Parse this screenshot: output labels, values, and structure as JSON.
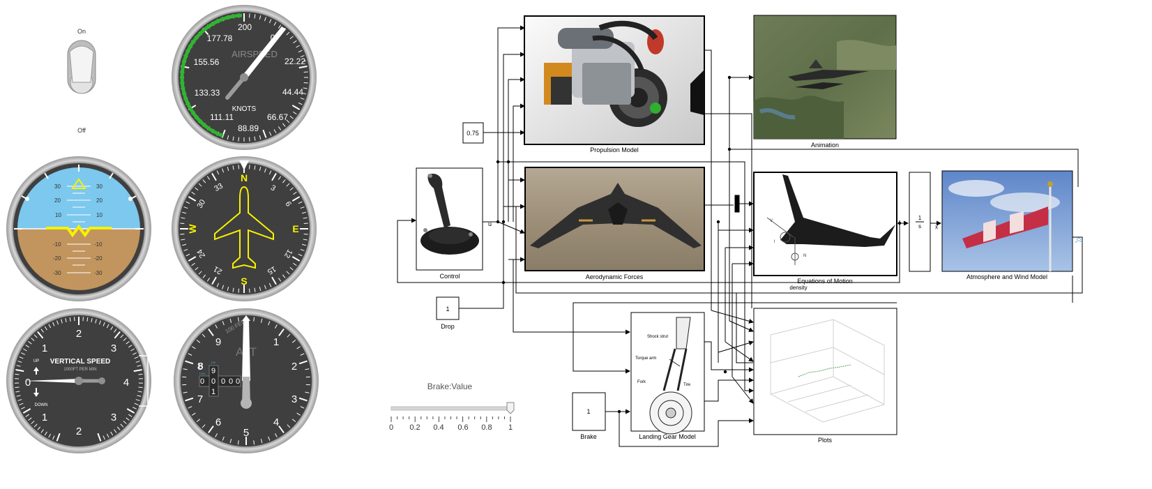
{
  "gauges": {
    "toggle": {
      "on_label": "On",
      "off_label": "Off",
      "state": "on"
    },
    "airspeed": {
      "title": "AIRSPEED",
      "units": "KNOTS",
      "ticks": [
        "200",
        "22.22",
        "44.44",
        "66.67",
        "88.89",
        "111.11",
        "133.33",
        "155.56",
        "177.78",
        "0"
      ],
      "needle_value_knots": 10,
      "arc_color": "#2fb52f"
    },
    "attitude": {
      "pitch_labels": [
        "30",
        "20",
        "10",
        "-10",
        "-20",
        "-30"
      ],
      "sky_color": "#7cc8ef",
      "ground_color": "#c2955f",
      "symbol_color": "#f7f200"
    },
    "heading": {
      "cardinals": [
        "N",
        "E",
        "S",
        "W"
      ],
      "numbers": [
        "3",
        "6",
        "12",
        "15",
        "21",
        "24",
        "30",
        "33"
      ],
      "heading_deg": 0,
      "symbol_color": "#f7f200"
    },
    "vertical_speed": {
      "title": "VERTICAL SPEED",
      "subtitle": "1000FT PER MIN",
      "up_label": "UP",
      "down_label": "DOWN",
      "numbers_top": [
        "0",
        "1",
        "2",
        "3",
        "4"
      ],
      "numbers_bottom": [
        "1",
        "2",
        "3"
      ],
      "needle_value": 0
    },
    "altimeter": {
      "title": "ALT",
      "subtitle": "100 FEET",
      "numbers": [
        "0",
        "1",
        "2",
        "3",
        "4",
        "5",
        "6",
        "7",
        "8",
        "9"
      ],
      "drum_top": "9",
      "drum_digits": [
        "0",
        "0",
        "0",
        "0",
        "0"
      ],
      "drum_bottom": "1",
      "drum_left_top": "8",
      "drum_small_labels": [
        "10K",
        "1000"
      ]
    }
  },
  "slider": {
    "label": "Brake:Value",
    "value": 1,
    "min": 0,
    "max": 1,
    "ticks": [
      "0",
      "0.2",
      "0.4",
      "0.6",
      "0.8",
      "1"
    ]
  },
  "model": {
    "blocks": {
      "propulsion": "Propulsion Model",
      "animation": "Animation",
      "control": "Control",
      "aero": "Aerodynamic Forces",
      "eom": "Equations of Motion",
      "atmos": "Atmosphere and Wind Model",
      "drop": "Drop",
      "brake": "Brake",
      "landing": "Landing Gear Model",
      "plots": "Plots"
    },
    "constants": {
      "throttle": "0.75",
      "drop": "1",
      "brake": "1"
    },
    "integrator": {
      "num": "1",
      "den": "s"
    },
    "port_labels": {
      "u": "u",
      "x": "x",
      "density": "density"
    },
    "landing_gear_annotations": [
      "Shock strut",
      "Torque arm",
      "Fork",
      "Tire"
    ]
  }
}
